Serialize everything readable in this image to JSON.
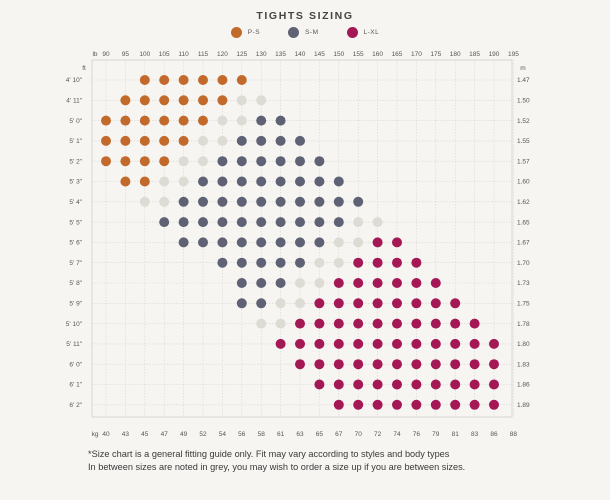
{
  "chart_data": {
    "type": "scatter",
    "title": "TIGHTS SIZING",
    "series": [
      {
        "name": "P-S",
        "color": "#c26a2c"
      },
      {
        "name": "S-M",
        "color": "#5e6274"
      },
      {
        "name": "L-XL",
        "color": "#a51856"
      },
      {
        "color": "#dcdcd4"
      }
    ],
    "top_axis": {
      "unit": "lb",
      "ticks": [
        "90",
        "95",
        "100",
        "105",
        "110",
        "115",
        "120",
        "125",
        "130",
        "135",
        "140",
        "145",
        "150",
        "155",
        "160",
        "165",
        "170",
        "175",
        "180",
        "185",
        "190",
        "195"
      ]
    },
    "bottom_axis": {
      "unit": "kg",
      "ticks": [
        "40",
        "43",
        "45",
        "47",
        "49",
        "52",
        "54",
        "56",
        "58",
        "61",
        "63",
        "65",
        "67",
        "70",
        "72",
        "74",
        "76",
        "79",
        "81",
        "83",
        "86",
        "88"
      ]
    },
    "left_axis": {
      "unit": "ft",
      "ticks": [
        "4' 10\"",
        "4' 11\"",
        "5' 0\"",
        "5' 1\"",
        "5' 2\"",
        "5' 3\"",
        "5' 4\"",
        "5' 5\"",
        "5' 6\"",
        "5' 7\"",
        "5' 8\"",
        "5' 9\"",
        "5' 10\"",
        "5' 11\"",
        "6' 0\"",
        "6' 1\"",
        "6' 2\""
      ]
    },
    "right_axis": {
      "unit": "m",
      "ticks": [
        "1.47",
        "1.50",
        "1.52",
        "1.55",
        "1.57",
        "1.60",
        "1.62",
        "1.65",
        "1.67",
        "1.70",
        "1.73",
        "1.75",
        "1.78",
        "1.80",
        "1.83",
        "1.86",
        "1.89"
      ]
    },
    "grid": true,
    "legend_position": "top-center",
    "rows": [
      {
        "height": "4' 10\"",
        "cells": [
          [
            100,
            0
          ],
          [
            105,
            0
          ],
          [
            110,
            0
          ],
          [
            115,
            0
          ],
          [
            120,
            0
          ],
          [
            125,
            0
          ]
        ]
      },
      {
        "height": "4' 11\"",
        "cells": [
          [
            95,
            0
          ],
          [
            100,
            0
          ],
          [
            105,
            0
          ],
          [
            110,
            0
          ],
          [
            115,
            0
          ],
          [
            120,
            0
          ],
          [
            125,
            3
          ],
          [
            130,
            3
          ]
        ]
      },
      {
        "height": "5' 0\"",
        "cells": [
          [
            90,
            0
          ],
          [
            95,
            0
          ],
          [
            100,
            0
          ],
          [
            105,
            0
          ],
          [
            110,
            0
          ],
          [
            115,
            0
          ],
          [
            120,
            3
          ],
          [
            125,
            3
          ],
          [
            130,
            1
          ],
          [
            135,
            1
          ]
        ]
      },
      {
        "height": "5' 1\"",
        "cells": [
          [
            90,
            0
          ],
          [
            95,
            0
          ],
          [
            100,
            0
          ],
          [
            105,
            0
          ],
          [
            110,
            0
          ],
          [
            115,
            3
          ],
          [
            120,
            3
          ],
          [
            125,
            1
          ],
          [
            130,
            1
          ],
          [
            135,
            1
          ],
          [
            140,
            1
          ]
        ]
      },
      {
        "height": "5' 2\"",
        "cells": [
          [
            90,
            0
          ],
          [
            95,
            0
          ],
          [
            100,
            0
          ],
          [
            105,
            0
          ],
          [
            110,
            3
          ],
          [
            115,
            3
          ],
          [
            120,
            1
          ],
          [
            125,
            1
          ],
          [
            130,
            1
          ],
          [
            135,
            1
          ],
          [
            140,
            1
          ],
          [
            145,
            1
          ]
        ]
      },
      {
        "height": "5' 3\"",
        "cells": [
          [
            95,
            0
          ],
          [
            100,
            0
          ],
          [
            105,
            3
          ],
          [
            110,
            3
          ],
          [
            115,
            1
          ],
          [
            120,
            1
          ],
          [
            125,
            1
          ],
          [
            130,
            1
          ],
          [
            135,
            1
          ],
          [
            140,
            1
          ],
          [
            145,
            1
          ],
          [
            150,
            1
          ]
        ]
      },
      {
        "height": "5' 4\"",
        "cells": [
          [
            100,
            3
          ],
          [
            105,
            3
          ],
          [
            110,
            1
          ],
          [
            115,
            1
          ],
          [
            120,
            1
          ],
          [
            125,
            1
          ],
          [
            130,
            1
          ],
          [
            135,
            1
          ],
          [
            140,
            1
          ],
          [
            145,
            1
          ],
          [
            150,
            1
          ],
          [
            155,
            1
          ]
        ]
      },
      {
        "height": "5' 5\"",
        "cells": [
          [
            105,
            1
          ],
          [
            110,
            1
          ],
          [
            115,
            1
          ],
          [
            120,
            1
          ],
          [
            125,
            1
          ],
          [
            130,
            1
          ],
          [
            135,
            1
          ],
          [
            140,
            1
          ],
          [
            145,
            1
          ],
          [
            150,
            1
          ],
          [
            155,
            3
          ],
          [
            160,
            3
          ]
        ]
      },
      {
        "height": "5' 6\"",
        "cells": [
          [
            110,
            1
          ],
          [
            115,
            1
          ],
          [
            120,
            1
          ],
          [
            125,
            1
          ],
          [
            130,
            1
          ],
          [
            135,
            1
          ],
          [
            140,
            1
          ],
          [
            145,
            1
          ],
          [
            150,
            3
          ],
          [
            155,
            3
          ],
          [
            160,
            2
          ],
          [
            165,
            2
          ]
        ]
      },
      {
        "height": "5' 7\"",
        "cells": [
          [
            120,
            1
          ],
          [
            125,
            1
          ],
          [
            130,
            1
          ],
          [
            135,
            1
          ],
          [
            140,
            1
          ],
          [
            145,
            3
          ],
          [
            150,
            3
          ],
          [
            155,
            2
          ],
          [
            160,
            2
          ],
          [
            165,
            2
          ],
          [
            170,
            2
          ]
        ]
      },
      {
        "height": "5' 8\"",
        "cells": [
          [
            125,
            1
          ],
          [
            130,
            1
          ],
          [
            135,
            1
          ],
          [
            140,
            3
          ],
          [
            145,
            3
          ],
          [
            150,
            2
          ],
          [
            155,
            2
          ],
          [
            160,
            2
          ],
          [
            165,
            2
          ],
          [
            170,
            2
          ],
          [
            175,
            2
          ]
        ]
      },
      {
        "height": "5' 9\"",
        "cells": [
          [
            125,
            1
          ],
          [
            130,
            1
          ],
          [
            135,
            3
          ],
          [
            140,
            3
          ],
          [
            145,
            2
          ],
          [
            150,
            2
          ],
          [
            155,
            2
          ],
          [
            160,
            2
          ],
          [
            165,
            2
          ],
          [
            170,
            2
          ],
          [
            175,
            2
          ],
          [
            180,
            2
          ]
        ]
      },
      {
        "height": "5' 10\"",
        "cells": [
          [
            130,
            3
          ],
          [
            135,
            3
          ],
          [
            140,
            2
          ],
          [
            145,
            2
          ],
          [
            150,
            2
          ],
          [
            155,
            2
          ],
          [
            160,
            2
          ],
          [
            165,
            2
          ],
          [
            170,
            2
          ],
          [
            175,
            2
          ],
          [
            180,
            2
          ],
          [
            185,
            2
          ]
        ]
      },
      {
        "height": "5' 11\"",
        "cells": [
          [
            135,
            2
          ],
          [
            140,
            2
          ],
          [
            145,
            2
          ],
          [
            150,
            2
          ],
          [
            155,
            2
          ],
          [
            160,
            2
          ],
          [
            165,
            2
          ],
          [
            170,
            2
          ],
          [
            175,
            2
          ],
          [
            180,
            2
          ],
          [
            185,
            2
          ],
          [
            190,
            2
          ]
        ]
      },
      {
        "height": "6' 0\"",
        "cells": [
          [
            140,
            2
          ],
          [
            145,
            2
          ],
          [
            150,
            2
          ],
          [
            155,
            2
          ],
          [
            160,
            2
          ],
          [
            165,
            2
          ],
          [
            170,
            2
          ],
          [
            175,
            2
          ],
          [
            180,
            2
          ],
          [
            185,
            2
          ],
          [
            190,
            2
          ]
        ]
      },
      {
        "height": "6' 1\"",
        "cells": [
          [
            145,
            2
          ],
          [
            150,
            2
          ],
          [
            155,
            2
          ],
          [
            160,
            2
          ],
          [
            165,
            2
          ],
          [
            170,
            2
          ],
          [
            175,
            2
          ],
          [
            180,
            2
          ],
          [
            185,
            2
          ],
          [
            190,
            2
          ]
        ]
      },
      {
        "height": "6' 2\"",
        "cells": [
          [
            150,
            2
          ],
          [
            155,
            2
          ],
          [
            160,
            2
          ],
          [
            165,
            2
          ],
          [
            170,
            2
          ],
          [
            175,
            2
          ],
          [
            180,
            2
          ],
          [
            185,
            2
          ],
          [
            190,
            2
          ]
        ]
      }
    ]
  },
  "footnote": {
    "line1": "*Size chart is a general fitting guide only. Fit may vary according to styles and body types",
    "line2": "In between sizes are noted in grey, you may wish to order a size up if you are between sizes."
  }
}
